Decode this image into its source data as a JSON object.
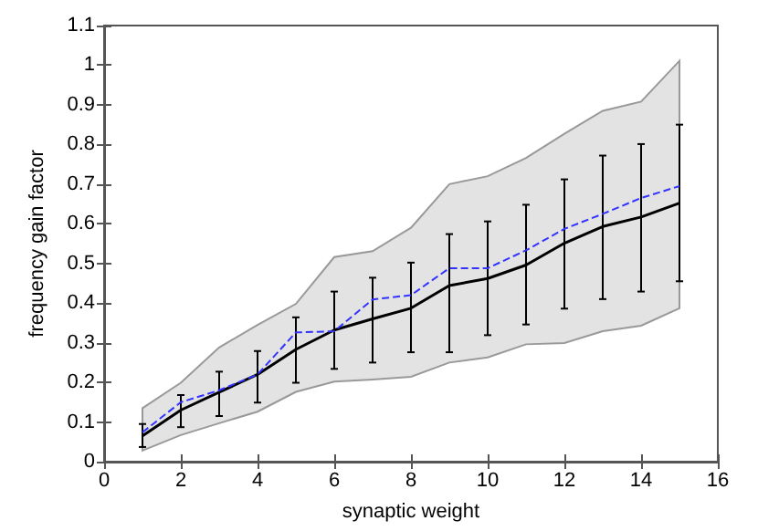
{
  "chart_data": {
    "type": "line",
    "xlabel": "synaptic weight",
    "ylabel": "frequency gain factor",
    "x": [
      1,
      2,
      3,
      4,
      5,
      6,
      7,
      8,
      9,
      10,
      11,
      12,
      13,
      14,
      15
    ],
    "series": [
      {
        "color": "#000000",
        "line_style": "solid",
        "values": [
          0.065,
          0.13,
          0.175,
          0.22,
          0.283,
          0.332,
          0.36,
          0.387,
          0.444,
          0.462,
          0.496,
          0.551,
          0.593,
          0.617,
          0.652
        ],
        "errors": [
          [
            0.037,
            0.095
          ],
          [
            0.087,
            0.168
          ],
          [
            0.115,
            0.227
          ],
          [
            0.149,
            0.279
          ],
          [
            0.199,
            0.364
          ],
          [
            0.234,
            0.429
          ],
          [
            0.25,
            0.464
          ],
          [
            0.276,
            0.502
          ],
          [
            0.276,
            0.574
          ],
          [
            0.319,
            0.606
          ],
          [
            0.346,
            0.648
          ],
          [
            0.386,
            0.712
          ],
          [
            0.41,
            0.772
          ],
          [
            0.429,
            0.801
          ],
          [
            0.455,
            0.85
          ]
        ],
        "lower": [
          0.028,
          0.067,
          0.097,
          0.126,
          0.176,
          0.202,
          0.207,
          0.214,
          0.25,
          0.263,
          0.296,
          0.299,
          0.329,
          0.343,
          0.387
        ],
        "upper": [
          0.135,
          0.199,
          0.288,
          0.345,
          0.398,
          0.516,
          0.531,
          0.59,
          0.7,
          0.72,
          0.766,
          0.827,
          0.885,
          0.908,
          1.011
        ]
      },
      {
        "color": "#3333ff",
        "line_style": "dashed",
        "values": [
          0.074,
          0.15,
          0.18,
          0.22,
          0.326,
          0.329,
          0.409,
          0.42,
          0.488,
          0.488,
          0.533,
          0.587,
          0.625,
          0.665,
          0.695
        ]
      }
    ],
    "xlim": [
      0,
      16
    ],
    "xticks": [
      0,
      2,
      4,
      6,
      8,
      10,
      12,
      14,
      16
    ],
    "ylim": [
      0,
      1.1
    ],
    "yticks": [
      0,
      0.1,
      0.2,
      0.3,
      0.4,
      0.5,
      0.6,
      0.7,
      0.8,
      0.9,
      1,
      1.1
    ],
    "grid": false,
    "marker": "none"
  }
}
